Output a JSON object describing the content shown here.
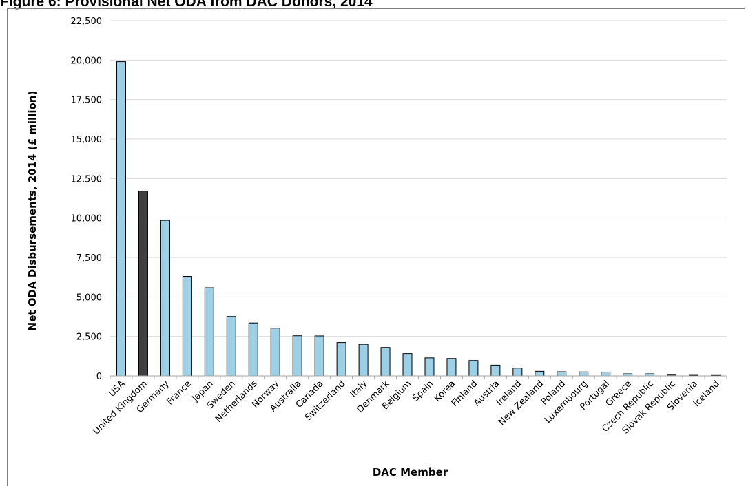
{
  "figure_title": "Figure 6: Provisional Net ODA from DAC Donors, 2014",
  "colors": {
    "default_bar": "#9fcfe6",
    "highlight_bar": "#404040",
    "bar_stroke": "#000000",
    "grid": "#d9d9d9"
  },
  "chart_data": {
    "type": "bar",
    "title": "",
    "xlabel": "DAC Member",
    "ylabel": "Net ODA Disbursements, 2014 (£ million)",
    "ylim": [
      0,
      22500
    ],
    "yticks": [
      0,
      2500,
      5000,
      7500,
      10000,
      12500,
      15000,
      17500,
      20000,
      22500
    ],
    "ytick_labels": [
      "0",
      "2,500",
      "5,000",
      "7,500",
      "10,000",
      "12,500",
      "15,000",
      "17,500",
      "20,000",
      "22,500"
    ],
    "grid": true,
    "highlight": "United Kingdom",
    "categories": [
      "USA",
      "United Kingdom",
      "Germany",
      "France",
      "Japan",
      "Sweden",
      "Netherlands",
      "Norway",
      "Australia",
      "Canada",
      "Switzerland",
      "Italy",
      "Denmark",
      "Belgium",
      "Spain",
      "Korea",
      "Finland",
      "Austria",
      "Ireland",
      "New Zealand",
      "Poland",
      "Luxembourg",
      "Portugal",
      "Greece",
      "Czech Republic",
      "Slovak Republic",
      "Slovenia",
      "Iceland"
    ],
    "values": [
      19900,
      11700,
      9850,
      6300,
      5580,
      3760,
      3350,
      3020,
      2540,
      2530,
      2110,
      2000,
      1800,
      1410,
      1140,
      1100,
      970,
      680,
      490,
      290,
      260,
      250,
      240,
      130,
      130,
      55,
      40,
      30
    ]
  }
}
